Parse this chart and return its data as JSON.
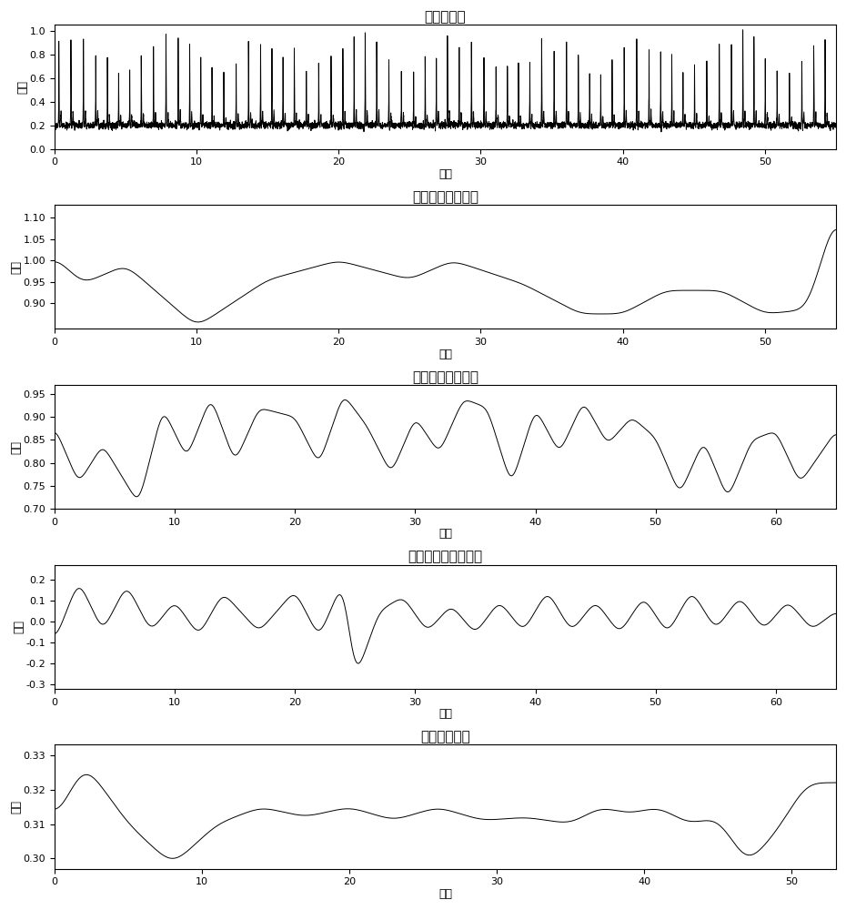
{
  "titles": [
    "原始脉搏波",
    "主波波峰包络特征",
    "脉搏周期变化特征",
    "脉搏幅度变化率特征",
    "脉搏低频特征"
  ],
  "xlabels": [
    "时间",
    "时间",
    "时间",
    "时间",
    "时间"
  ],
  "ylabels": [
    "幅度",
    "幅度",
    "幅度",
    "幅度",
    "幅度"
  ],
  "background_color": "#ffffff",
  "line_color": "#000000",
  "title_fontsize": 11,
  "label_fontsize": 9,
  "tick_fontsize": 8
}
